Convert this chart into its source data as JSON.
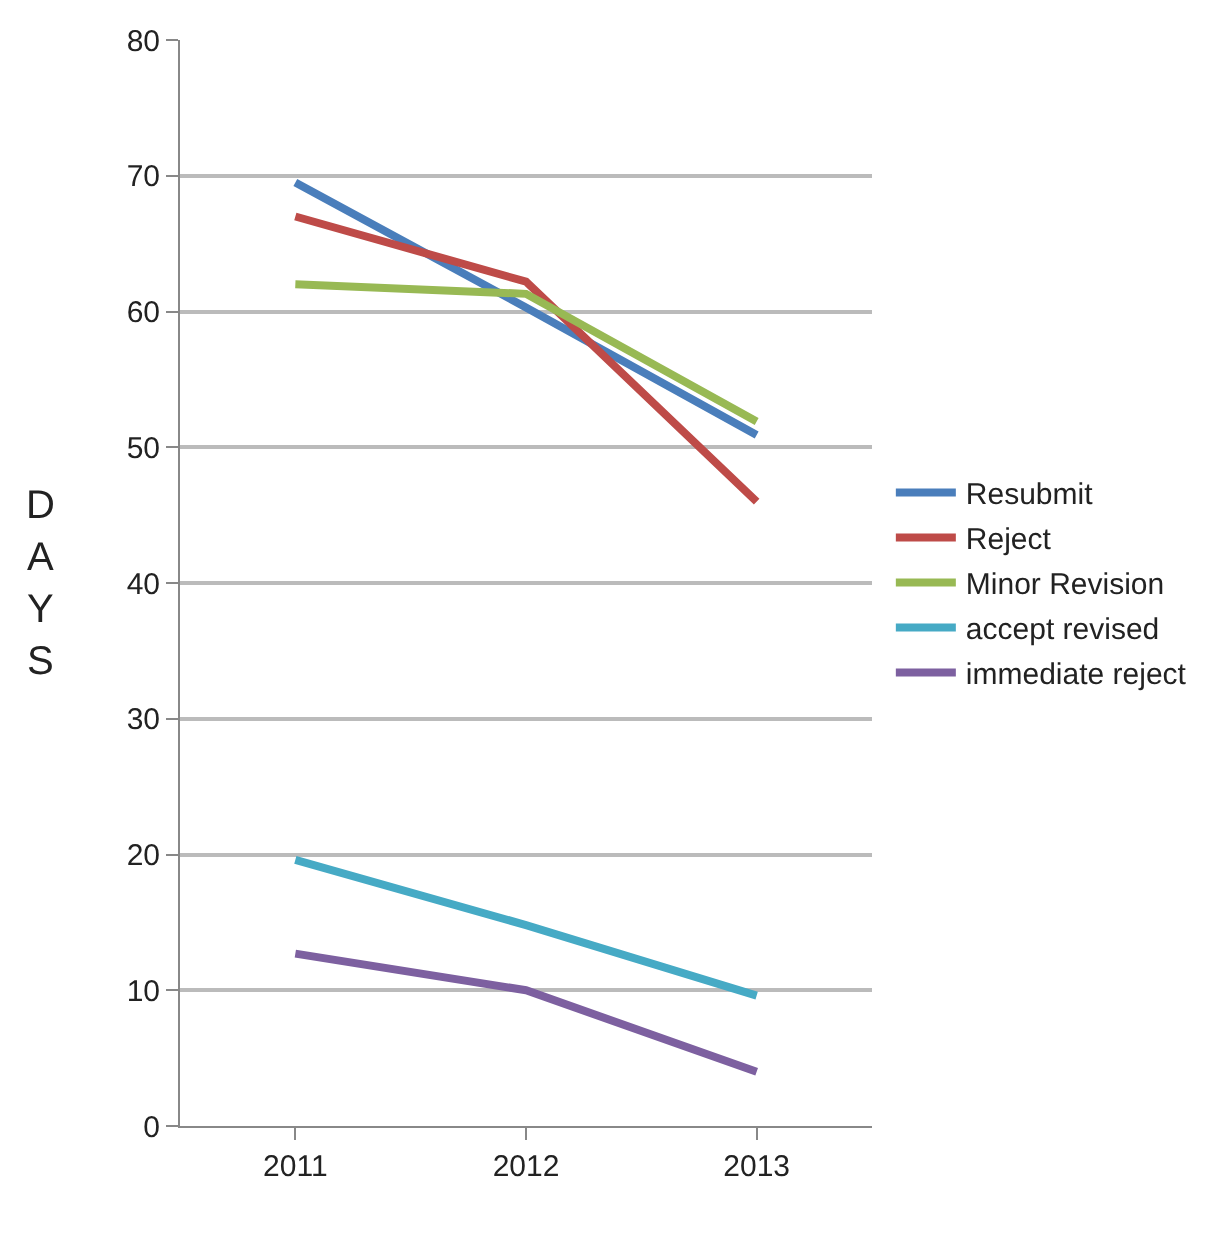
{
  "chart_data": {
    "type": "line",
    "ylabel": "DAYS",
    "categories": [
      "2011",
      "2012",
      "2013"
    ],
    "ylim": [
      0,
      80
    ],
    "yticks": [
      0,
      10,
      20,
      30,
      40,
      50,
      60,
      70,
      80
    ],
    "grid": "y",
    "legend": "right",
    "marker": "none",
    "line_style": "solid",
    "series": [
      {
        "name": "Resubmit",
        "color": "#4a7ebb",
        "values": [
          69.5,
          60.3,
          50.9
        ]
      },
      {
        "name": "Reject",
        "color": "#be4b48",
        "values": [
          67,
          62.2,
          46
        ]
      },
      {
        "name": "Minor Revision",
        "color": "#98b954",
        "values": [
          62,
          61.3,
          51.9
        ]
      },
      {
        "name": "accept revised",
        "color": "#46aac5",
        "values": [
          19.6,
          14.8,
          9.6
        ]
      },
      {
        "name": "immediate reject",
        "color": "#7d60a0",
        "values": [
          12.7,
          10,
          4
        ]
      }
    ]
  }
}
